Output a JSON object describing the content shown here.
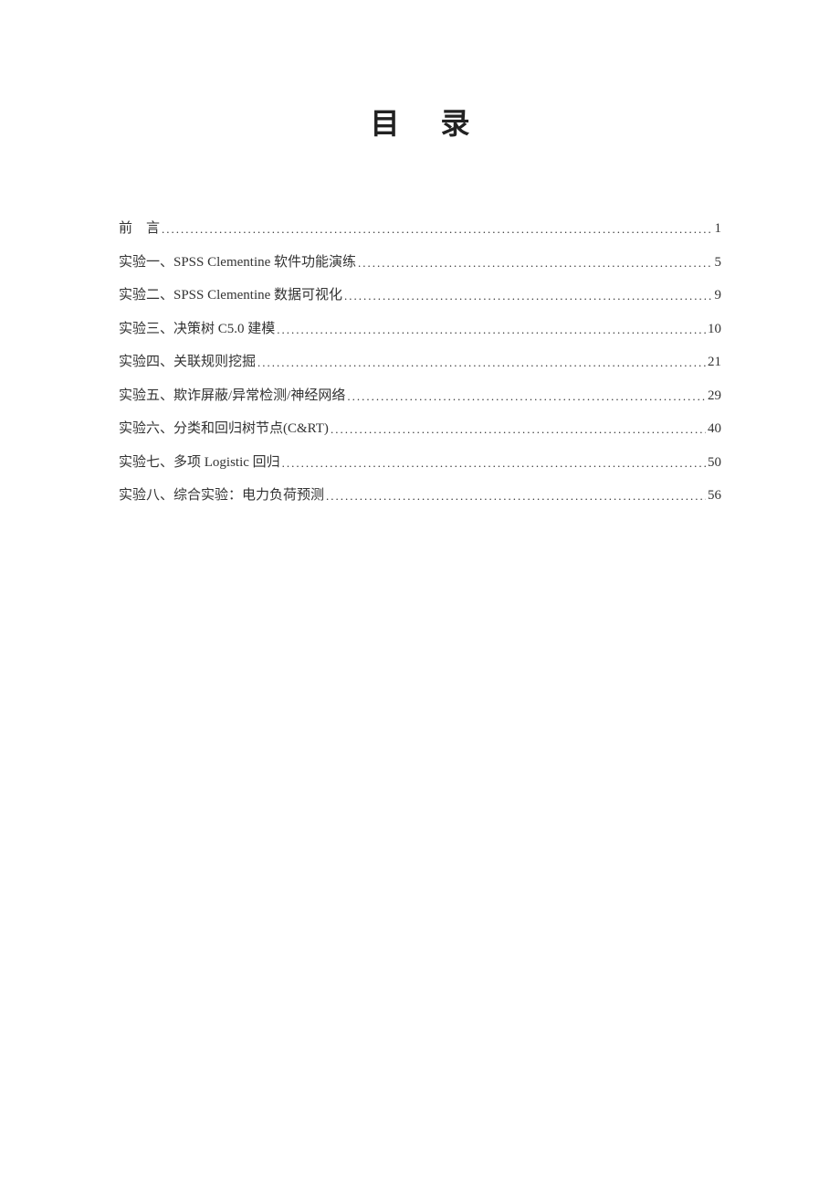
{
  "title": "目录",
  "entries": [
    {
      "label": "前　言",
      "page": "1"
    },
    {
      "label": "实验一、SPSS Clementine 软件功能演练",
      "page": "5"
    },
    {
      "label": "实验二、SPSS Clementine 数据可视化",
      "page": "9"
    },
    {
      "label": "实验三、决策树 C5.0 建模",
      "page": "10"
    },
    {
      "label": "实验四、关联规则挖掘",
      "page": "21"
    },
    {
      "label": "实验五、欺诈屏蔽/异常检测/神经网络",
      "page": "29"
    },
    {
      "label": "实验六、分类和回归树节点(C&RT)",
      "page": "40"
    },
    {
      "label": "实验七、多项 Logistic 回归",
      "page": "50"
    },
    {
      "label": "实验八、综合实验：电力负荷预测",
      "page": "56"
    }
  ]
}
